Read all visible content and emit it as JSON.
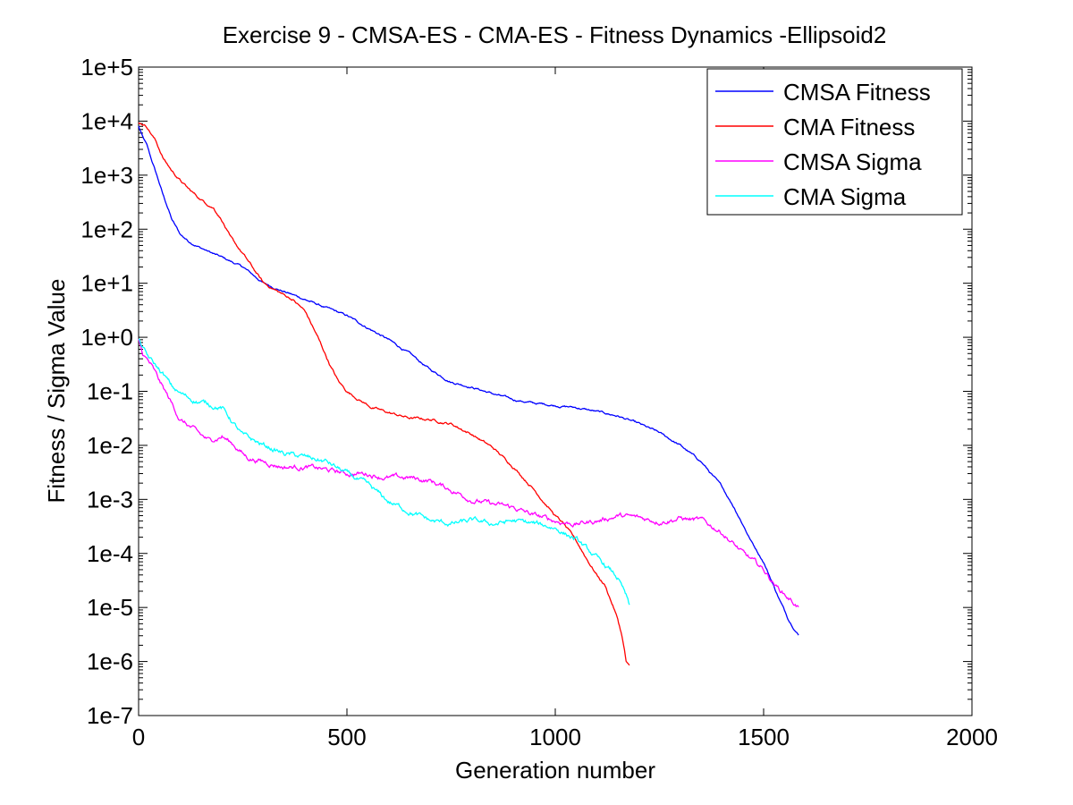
{
  "chart_data": {
    "type": "line",
    "title": "Exercise 9 - CMSA-ES - CMA-ES - Fitness Dynamics -Ellipsoid2",
    "xlabel": "Generation number",
    "ylabel": "Fitness / Sigma Value",
    "xlim": [
      0,
      2000
    ],
    "ylim": [
      1e-07,
      100000.0
    ],
    "yscale": "log",
    "grid": false,
    "legend_position": "top-right",
    "x_ticks": [
      0,
      500,
      1000,
      1500,
      2000
    ],
    "x_tick_labels": [
      "0",
      "500",
      "1000",
      "1500",
      "2000"
    ],
    "y_ticks": [
      100000.0,
      10000.0,
      1000.0,
      100.0,
      10.0,
      1,
      0.1,
      0.01,
      0.001,
      0.0001,
      1e-05,
      1e-06,
      1e-07
    ],
    "y_tick_labels": [
      "1e+5",
      "1e+4",
      "1e+3",
      "1e+2",
      "1e+1",
      "1e+0",
      "1e-1",
      "1e-2",
      "1e-3",
      "1e-4",
      "1e-5",
      "1e-6",
      "1e-7"
    ],
    "series": [
      {
        "name": "CMSA Fitness",
        "color": "#0000ff",
        "x": [
          0,
          10,
          20,
          30,
          40,
          50,
          60,
          70,
          80,
          100,
          120,
          150,
          180,
          200,
          250,
          300,
          350,
          400,
          450,
          500,
          550,
          600,
          650,
          700,
          750,
          800,
          850,
          900,
          950,
          1000,
          1050,
          1100,
          1150,
          1200,
          1250,
          1300,
          1350,
          1400,
          1430,
          1450,
          1470,
          1500,
          1520,
          1540,
          1560,
          1580,
          1585
        ],
        "y": [
          8000,
          5000,
          3500,
          2000,
          1200,
          700,
          400,
          250,
          150,
          80,
          60,
          45,
          35,
          30,
          20,
          10,
          7,
          5,
          3.5,
          2.5,
          1.5,
          0.9,
          0.5,
          0.25,
          0.15,
          0.12,
          0.09,
          0.07,
          0.06,
          0.055,
          0.05,
          0.042,
          0.035,
          0.025,
          0.017,
          0.01,
          0.005,
          0.0017,
          0.0007,
          0.00035,
          0.00017,
          7e-05,
          3e-05,
          1.3e-05,
          6e-06,
          3.5e-06,
          3e-06
        ]
      },
      {
        "name": "CMA Fitness",
        "color": "#ff0000",
        "x": [
          0,
          10,
          20,
          30,
          40,
          50,
          60,
          80,
          100,
          120,
          150,
          180,
          200,
          220,
          250,
          300,
          350,
          370,
          400,
          430,
          460,
          480,
          500,
          530,
          560,
          600,
          650,
          700,
          750,
          800,
          850,
          900,
          950,
          1000,
          1020,
          1050,
          1080,
          1100,
          1120,
          1140,
          1150,
          1160,
          1165,
          1170,
          1178
        ],
        "y": [
          9500,
          9000,
          8000,
          6000,
          4500,
          3000,
          2000,
          1200,
          800,
          550,
          350,
          250,
          150,
          70,
          35,
          10,
          6,
          5,
          3,
          1,
          0.3,
          0.15,
          0.1,
          0.07,
          0.05,
          0.04,
          0.032,
          0.03,
          0.025,
          0.016,
          0.009,
          0.004,
          0.0015,
          0.0005,
          0.00035,
          0.00017,
          7e-05,
          4e-05,
          2.5e-05,
          1e-05,
          6e-06,
          3e-06,
          1.8e-06,
          1e-06,
          8e-07
        ]
      },
      {
        "name": "CMSA Sigma",
        "color": "#ff00ff",
        "x": [
          0,
          10,
          30,
          50,
          70,
          100,
          130,
          150,
          170,
          200,
          230,
          260,
          300,
          350,
          400,
          450,
          500,
          550,
          600,
          650,
          700,
          750,
          800,
          850,
          900,
          950,
          1000,
          1050,
          1100,
          1150,
          1200,
          1250,
          1300,
          1350,
          1400,
          1450,
          1500,
          1530,
          1560,
          1585
        ],
        "y": [
          0.9,
          0.5,
          0.3,
          0.15,
          0.08,
          0.03,
          0.02,
          0.015,
          0.012,
          0.015,
          0.01,
          0.006,
          0.005,
          0.004,
          0.004,
          0.0035,
          0.003,
          0.003,
          0.0025,
          0.0025,
          0.0022,
          0.0015,
          0.001,
          0.0008,
          0.0007,
          0.0005,
          0.0004,
          0.00035,
          0.0004,
          0.0005,
          0.00045,
          0.0004,
          0.00045,
          0.0004,
          0.00025,
          0.0001,
          5e-05,
          2.5e-05,
          1.5e-05,
          1e-05
        ]
      },
      {
        "name": "CMA Sigma",
        "color": "#00ffff",
        "x": [
          0,
          20,
          40,
          60,
          80,
          100,
          130,
          160,
          200,
          250,
          300,
          350,
          400,
          450,
          500,
          550,
          600,
          650,
          700,
          750,
          800,
          850,
          900,
          950,
          1000,
          1050,
          1100,
          1130,
          1150,
          1170,
          1178
        ],
        "y": [
          0.9,
          0.45,
          0.3,
          0.2,
          0.12,
          0.09,
          0.07,
          0.06,
          0.05,
          0.015,
          0.01,
          0.007,
          0.006,
          0.005,
          0.003,
          0.0018,
          0.0009,
          0.0006,
          0.0004,
          0.00035,
          0.0004,
          0.00035,
          0.0004,
          0.00035,
          0.0003,
          0.00018,
          8e-05,
          5e-05,
          3.5e-05,
          1.6e-05,
          1e-05
        ]
      }
    ]
  }
}
